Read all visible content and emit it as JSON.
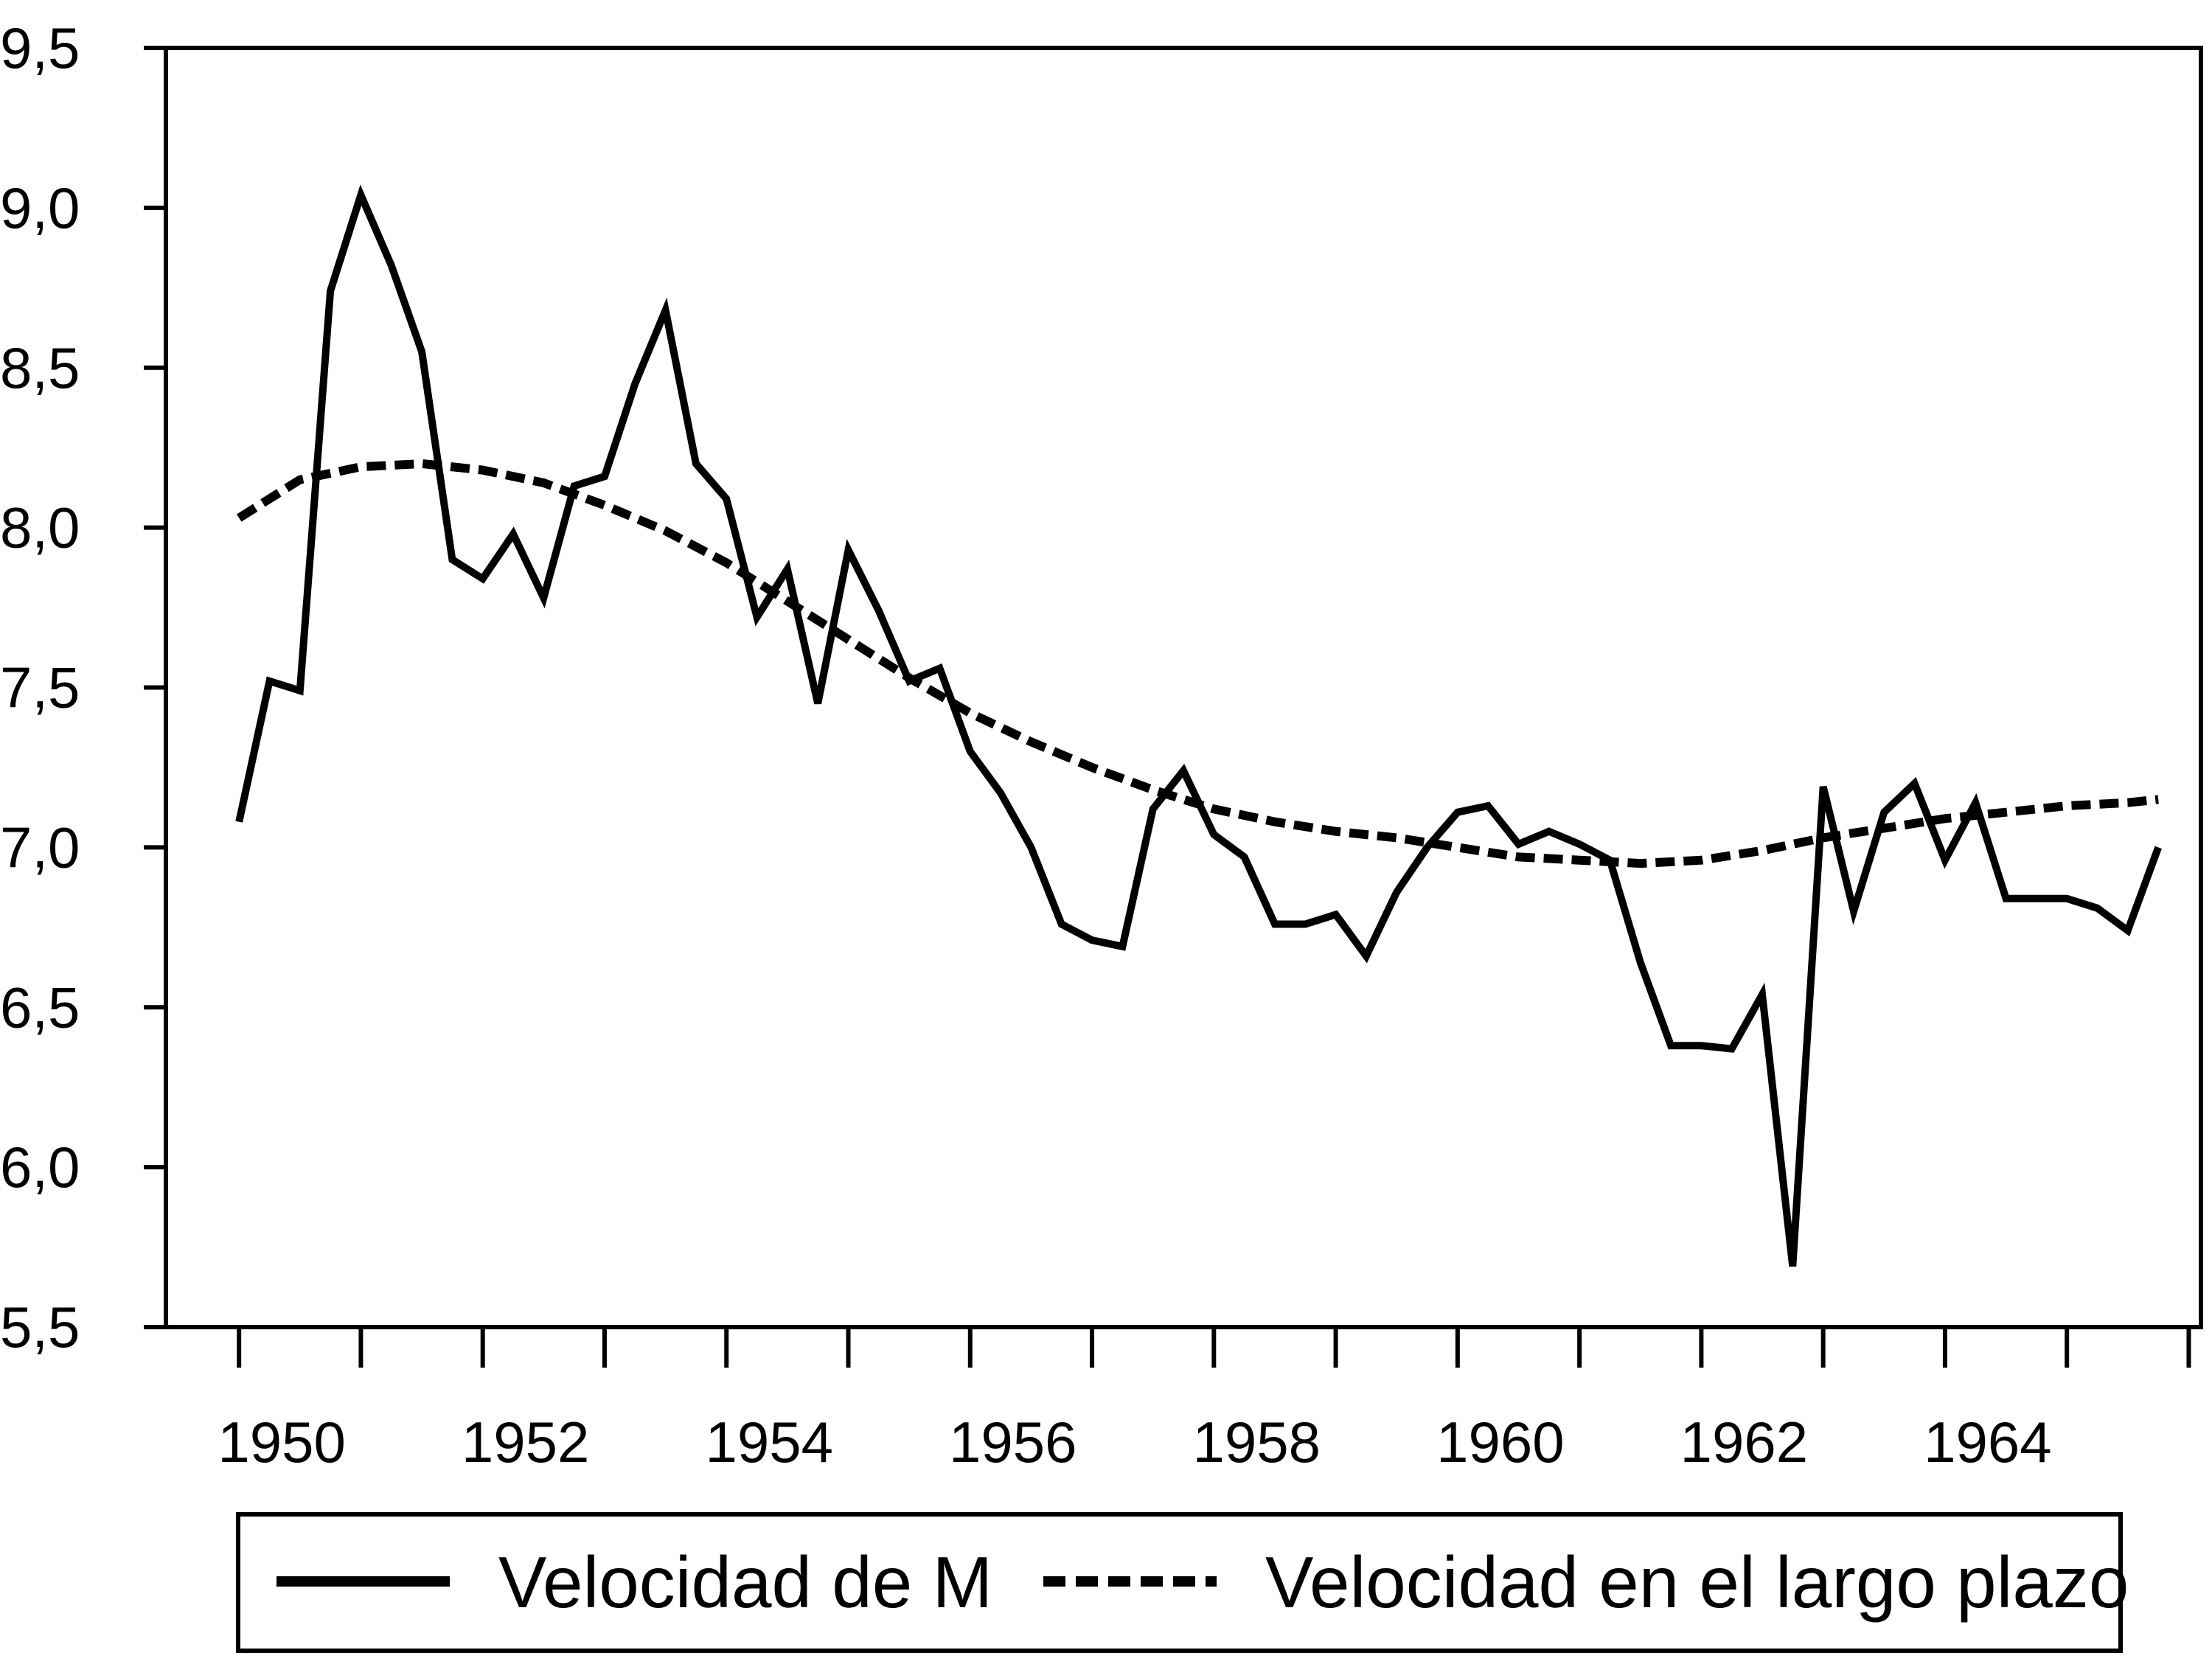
{
  "chart_data": {
    "type": "line",
    "title": "",
    "xlabel": "",
    "ylabel": "",
    "xlim": [
      1949.4,
      1966.1
    ],
    "ylim": [
      5.5,
      9.5
    ],
    "x_ticks": [
      1950,
      1952,
      1954,
      1956,
      1958,
      1960,
      1962,
      1964
    ],
    "x_tick_labels": [
      "1950",
      "1952",
      "1954",
      "1956",
      "1958",
      "1960",
      "1962",
      "1964"
    ],
    "y_ticks": [
      5.5,
      6.0,
      6.5,
      7.0,
      7.5,
      8.0,
      8.5,
      9.0,
      9.5
    ],
    "y_tick_labels": [
      "5,5",
      "6,0",
      "6,5",
      "7,0",
      "7,5",
      "8,0",
      "8,5",
      "9,0",
      "9,5"
    ],
    "grid": false,
    "legend_position": "bottom",
    "series": [
      {
        "name": "Velocidad de M",
        "style": "solid",
        "color": "#000000",
        "x": [
          1950.0,
          1950.25,
          1950.5,
          1950.75,
          1951.0,
          1951.25,
          1951.5,
          1951.75,
          1952.0,
          1952.25,
          1952.5,
          1952.75,
          1953.0,
          1953.25,
          1953.5,
          1953.75,
          1954.0,
          1954.25,
          1954.5,
          1954.75,
          1955.0,
          1955.25,
          1955.5,
          1955.75,
          1956.0,
          1956.25,
          1956.5,
          1956.75,
          1957.0,
          1957.25,
          1957.5,
          1957.75,
          1958.0,
          1958.25,
          1958.5,
          1958.75,
          1959.0,
          1959.25,
          1959.5,
          1959.75,
          1960.0,
          1960.25,
          1960.5,
          1960.75,
          1961.0,
          1961.25,
          1961.5,
          1961.75,
          1962.0,
          1962.25,
          1962.5,
          1962.75,
          1963.0,
          1963.25,
          1963.5,
          1963.75,
          1964.0,
          1964.25,
          1964.5,
          1964.75,
          1965.0,
          1965.25,
          1965.5,
          1965.75
        ],
        "y": [
          7.08,
          7.52,
          7.49,
          8.74,
          9.04,
          8.82,
          8.55,
          7.9,
          7.84,
          7.98,
          7.78,
          8.13,
          8.16,
          8.45,
          8.68,
          8.2,
          8.09,
          7.72,
          7.87,
          7.45,
          7.93,
          7.74,
          7.52,
          7.56,
          7.3,
          7.17,
          7.0,
          6.76,
          6.71,
          6.69,
          7.12,
          7.24,
          7.04,
          6.97,
          6.76,
          6.76,
          6.79,
          6.66,
          6.86,
          7.0,
          7.11,
          7.13,
          7.01,
          7.05,
          7.01,
          6.96,
          6.64,
          6.38,
          6.38,
          6.37,
          6.54,
          5.69,
          7.19,
          6.8,
          7.11,
          7.2,
          6.96,
          7.14,
          6.84,
          6.84,
          6.84,
          6.81,
          6.74,
          7.0
        ]
      },
      {
        "name": "Velocidad en el largo plazo",
        "style": "dashed",
        "color": "#000000",
        "x": [
          1950.0,
          1950.5,
          1951.0,
          1951.5,
          1952.0,
          1952.5,
          1953.0,
          1953.5,
          1954.0,
          1954.5,
          1955.0,
          1955.5,
          1956.0,
          1956.5,
          1957.0,
          1957.5,
          1958.0,
          1958.5,
          1959.0,
          1959.5,
          1960.0,
          1960.5,
          1961.0,
          1961.5,
          1962.0,
          1962.5,
          1963.0,
          1963.5,
          1964.0,
          1964.5,
          1965.0,
          1965.5,
          1965.75
        ],
        "y": [
          8.03,
          8.15,
          8.19,
          8.2,
          8.18,
          8.14,
          8.07,
          7.99,
          7.89,
          7.77,
          7.65,
          7.53,
          7.42,
          7.33,
          7.25,
          7.18,
          7.12,
          7.08,
          7.05,
          7.03,
          7.0,
          6.97,
          6.96,
          6.95,
          6.96,
          6.99,
          7.03,
          7.06,
          7.09,
          7.11,
          7.13,
          7.14,
          7.15
        ]
      }
    ]
  },
  "legend": {
    "items": [
      {
        "label": "Velocidad de M",
        "style": "solid"
      },
      {
        "label": "Velocidad en el largo plazo",
        "style": "dashed"
      }
    ]
  }
}
